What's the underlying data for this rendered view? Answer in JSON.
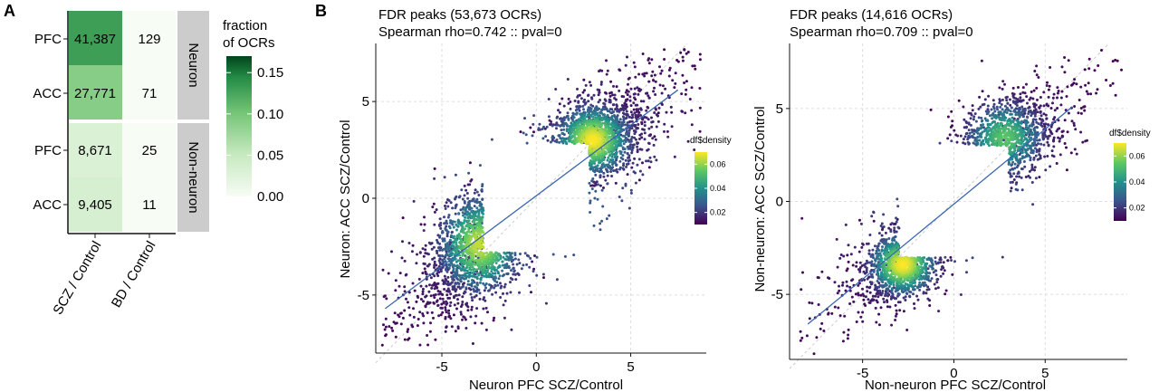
{
  "panel_a": {
    "label": "A",
    "chart_data": {
      "type": "heatmap",
      "rows": [
        "PFC",
        "ACC",
        "PFC",
        "ACC"
      ],
      "columns": [
        "SCZ / Control",
        "BD / Control"
      ],
      "cells": [
        [
          "41,387",
          "129"
        ],
        [
          "27,771",
          "71"
        ],
        [
          "8,671",
          "25"
        ],
        [
          "9,405",
          "11"
        ]
      ],
      "fractions": [
        [
          0.13,
          0.0004
        ],
        [
          0.09,
          0.0003
        ],
        [
          0.03,
          0.0001
        ],
        [
          0.035,
          0.0001
        ]
      ],
      "groups": [
        "Neuron",
        "Non-neuron"
      ],
      "legend": {
        "title_line1": "fraction",
        "title_line2": "of OCRs",
        "ticks": [
          "0.15",
          "0.10",
          "0.05",
          "0.00"
        ],
        "range": [
          0,
          0.17
        ],
        "color_low": "#f7fcf5",
        "color_high": "#00441b"
      }
    }
  },
  "panel_b": {
    "label": "B",
    "chart_data": [
      {
        "type": "scatter",
        "title": "FDR peaks (53,673 OCRs)",
        "subtitle": "Spearman rho=0.742 :: pval=0",
        "xlabel": "Neuron PFC SCZ/Control",
        "ylabel": "Neuron: ACC SCZ/Control",
        "xlim": [
          -8.5,
          9.0
        ],
        "ylim": [
          -8.0,
          8.0
        ],
        "xticks": [
          -5,
          0,
          5
        ],
        "yticks": [
          -5,
          0,
          5
        ],
        "fit_line": [
          [
            -8,
            -5.7
          ],
          [
            7.5,
            5.6
          ]
        ],
        "density_legend": {
          "title": "df$density",
          "ticks": [
            0.06,
            0.04,
            0.02
          ],
          "range": [
            0.01,
            0.07
          ]
        },
        "density_clusters": [
          {
            "x": 3.0,
            "y": 3.0,
            "sx": 1.1,
            "sy": 1.0,
            "rho": 0.2,
            "n": 1500,
            "w": 1.0
          },
          {
            "x": -3.0,
            "y": -2.4,
            "sx": 1.2,
            "sy": 1.4,
            "rho": 0.3,
            "n": 1500,
            "w": 0.9
          },
          {
            "x": 0.2,
            "y": 0.2,
            "sx": 4.5,
            "sy": 4.0,
            "rho": 0.9,
            "n": 1700,
            "w": 0.3
          }
        ],
        "gap_threshold": 2.8
      },
      {
        "type": "scatter",
        "title": "FDR peaks (14,616 OCRs)",
        "subtitle": "Spearman rho=0.709 :: pval=0",
        "xlabel": "Non-neuron PFC SCZ/Control",
        "ylabel": "Non-neuron: ACC SCZ/Control",
        "xlim": [
          -9.0,
          9.5
        ],
        "ylim": [
          -8.5,
          8.5
        ],
        "xticks": [
          -5,
          0,
          5
        ],
        "yticks": [
          -5,
          0,
          5
        ],
        "fit_line": [
          [
            -8,
            -6.6
          ],
          [
            6.5,
            5.1
          ]
        ],
        "density_legend": {
          "title": "df$density",
          "ticks": [
            0.06,
            0.04,
            0.02
          ],
          "range": [
            0.01,
            0.07
          ]
        },
        "density_clusters": [
          {
            "x": -2.8,
            "y": -3.4,
            "sx": 1.0,
            "sy": 0.9,
            "rho": 0.2,
            "n": 1300,
            "w": 1.0
          },
          {
            "x": 2.8,
            "y": 3.4,
            "sx": 1.2,
            "sy": 1.1,
            "rho": 0.2,
            "n": 1100,
            "w": 0.7
          },
          {
            "x": 0.0,
            "y": 0.0,
            "sx": 4.2,
            "sy": 4.0,
            "rho": 0.9,
            "n": 800,
            "w": 0.25
          }
        ],
        "gap_threshold": 3.0
      }
    ]
  }
}
